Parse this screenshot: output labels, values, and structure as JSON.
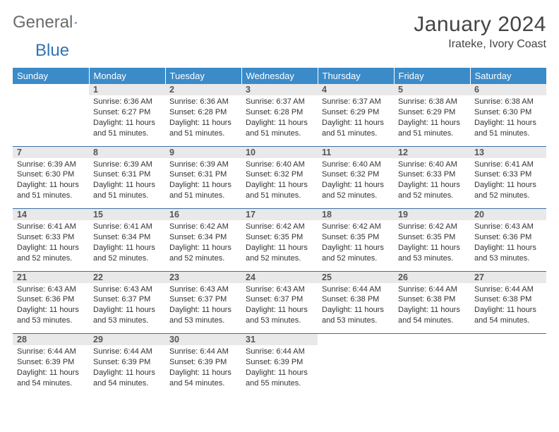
{
  "logo": {
    "part1": "General",
    "part2": "Blue"
  },
  "title": "January 2024",
  "location": "Irateke, Ivory Coast",
  "colors": {
    "header_bg": "#3b8bc9",
    "header_text": "#ffffff",
    "daynum_bg": "#e9e9e9",
    "border": "#3b6fa5",
    "logo_gray": "#6b6b6b",
    "logo_blue": "#2e75b6"
  },
  "weekdays": [
    "Sunday",
    "Monday",
    "Tuesday",
    "Wednesday",
    "Thursday",
    "Friday",
    "Saturday"
  ],
  "weeks": [
    [
      {
        "day": "",
        "lines": []
      },
      {
        "day": "1",
        "lines": [
          "Sunrise: 6:36 AM",
          "Sunset: 6:27 PM",
          "Daylight: 11 hours and 51 minutes."
        ]
      },
      {
        "day": "2",
        "lines": [
          "Sunrise: 6:36 AM",
          "Sunset: 6:28 PM",
          "Daylight: 11 hours and 51 minutes."
        ]
      },
      {
        "day": "3",
        "lines": [
          "Sunrise: 6:37 AM",
          "Sunset: 6:28 PM",
          "Daylight: 11 hours and 51 minutes."
        ]
      },
      {
        "day": "4",
        "lines": [
          "Sunrise: 6:37 AM",
          "Sunset: 6:29 PM",
          "Daylight: 11 hours and 51 minutes."
        ]
      },
      {
        "day": "5",
        "lines": [
          "Sunrise: 6:38 AM",
          "Sunset: 6:29 PM",
          "Daylight: 11 hours and 51 minutes."
        ]
      },
      {
        "day": "6",
        "lines": [
          "Sunrise: 6:38 AM",
          "Sunset: 6:30 PM",
          "Daylight: 11 hours and 51 minutes."
        ]
      }
    ],
    [
      {
        "day": "7",
        "lines": [
          "Sunrise: 6:39 AM",
          "Sunset: 6:30 PM",
          "Daylight: 11 hours and 51 minutes."
        ]
      },
      {
        "day": "8",
        "lines": [
          "Sunrise: 6:39 AM",
          "Sunset: 6:31 PM",
          "Daylight: 11 hours and 51 minutes."
        ]
      },
      {
        "day": "9",
        "lines": [
          "Sunrise: 6:39 AM",
          "Sunset: 6:31 PM",
          "Daylight: 11 hours and 51 minutes."
        ]
      },
      {
        "day": "10",
        "lines": [
          "Sunrise: 6:40 AM",
          "Sunset: 6:32 PM",
          "Daylight: 11 hours and 51 minutes."
        ]
      },
      {
        "day": "11",
        "lines": [
          "Sunrise: 6:40 AM",
          "Sunset: 6:32 PM",
          "Daylight: 11 hours and 52 minutes."
        ]
      },
      {
        "day": "12",
        "lines": [
          "Sunrise: 6:40 AM",
          "Sunset: 6:33 PM",
          "Daylight: 11 hours and 52 minutes."
        ]
      },
      {
        "day": "13",
        "lines": [
          "Sunrise: 6:41 AM",
          "Sunset: 6:33 PM",
          "Daylight: 11 hours and 52 minutes."
        ]
      }
    ],
    [
      {
        "day": "14",
        "lines": [
          "Sunrise: 6:41 AM",
          "Sunset: 6:33 PM",
          "Daylight: 11 hours and 52 minutes."
        ]
      },
      {
        "day": "15",
        "lines": [
          "Sunrise: 6:41 AM",
          "Sunset: 6:34 PM",
          "Daylight: 11 hours and 52 minutes."
        ]
      },
      {
        "day": "16",
        "lines": [
          "Sunrise: 6:42 AM",
          "Sunset: 6:34 PM",
          "Daylight: 11 hours and 52 minutes."
        ]
      },
      {
        "day": "17",
        "lines": [
          "Sunrise: 6:42 AM",
          "Sunset: 6:35 PM",
          "Daylight: 11 hours and 52 minutes."
        ]
      },
      {
        "day": "18",
        "lines": [
          "Sunrise: 6:42 AM",
          "Sunset: 6:35 PM",
          "Daylight: 11 hours and 52 minutes."
        ]
      },
      {
        "day": "19",
        "lines": [
          "Sunrise: 6:42 AM",
          "Sunset: 6:35 PM",
          "Daylight: 11 hours and 53 minutes."
        ]
      },
      {
        "day": "20",
        "lines": [
          "Sunrise: 6:43 AM",
          "Sunset: 6:36 PM",
          "Daylight: 11 hours and 53 minutes."
        ]
      }
    ],
    [
      {
        "day": "21",
        "lines": [
          "Sunrise: 6:43 AM",
          "Sunset: 6:36 PM",
          "Daylight: 11 hours and 53 minutes."
        ]
      },
      {
        "day": "22",
        "lines": [
          "Sunrise: 6:43 AM",
          "Sunset: 6:37 PM",
          "Daylight: 11 hours and 53 minutes."
        ]
      },
      {
        "day": "23",
        "lines": [
          "Sunrise: 6:43 AM",
          "Sunset: 6:37 PM",
          "Daylight: 11 hours and 53 minutes."
        ]
      },
      {
        "day": "24",
        "lines": [
          "Sunrise: 6:43 AM",
          "Sunset: 6:37 PM",
          "Daylight: 11 hours and 53 minutes."
        ]
      },
      {
        "day": "25",
        "lines": [
          "Sunrise: 6:44 AM",
          "Sunset: 6:38 PM",
          "Daylight: 11 hours and 53 minutes."
        ]
      },
      {
        "day": "26",
        "lines": [
          "Sunrise: 6:44 AM",
          "Sunset: 6:38 PM",
          "Daylight: 11 hours and 54 minutes."
        ]
      },
      {
        "day": "27",
        "lines": [
          "Sunrise: 6:44 AM",
          "Sunset: 6:38 PM",
          "Daylight: 11 hours and 54 minutes."
        ]
      }
    ],
    [
      {
        "day": "28",
        "lines": [
          "Sunrise: 6:44 AM",
          "Sunset: 6:39 PM",
          "Daylight: 11 hours and 54 minutes."
        ]
      },
      {
        "day": "29",
        "lines": [
          "Sunrise: 6:44 AM",
          "Sunset: 6:39 PM",
          "Daylight: 11 hours and 54 minutes."
        ]
      },
      {
        "day": "30",
        "lines": [
          "Sunrise: 6:44 AM",
          "Sunset: 6:39 PM",
          "Daylight: 11 hours and 54 minutes."
        ]
      },
      {
        "day": "31",
        "lines": [
          "Sunrise: 6:44 AM",
          "Sunset: 6:39 PM",
          "Daylight: 11 hours and 55 minutes."
        ]
      },
      {
        "day": "",
        "lines": []
      },
      {
        "day": "",
        "lines": []
      },
      {
        "day": "",
        "lines": []
      }
    ]
  ]
}
